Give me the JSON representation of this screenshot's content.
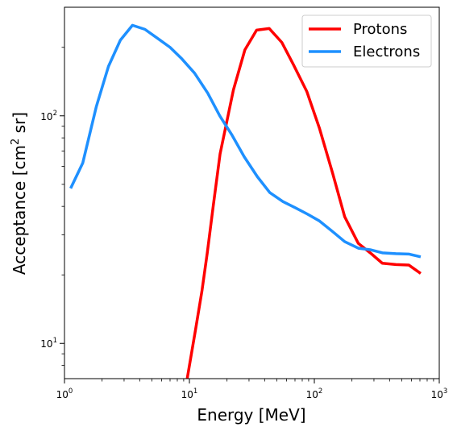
{
  "chart_data": {
    "type": "line",
    "xlabel": "Energy [MeV]",
    "ylabel_main": "Acceptance [cm",
    "ylabel_sup": "2",
    "ylabel_end": " sr]",
    "x_scale": "log",
    "y_scale": "log",
    "xlim": [
      1,
      1000
    ],
    "ylim": [
      7,
      300
    ],
    "x_ticks": [
      {
        "value": 1,
        "base": "10",
        "exp": "0"
      },
      {
        "value": 10,
        "base": "10",
        "exp": "1"
      },
      {
        "value": 100,
        "base": "10",
        "exp": "2"
      },
      {
        "value": 1000,
        "base": "10",
        "exp": "3"
      }
    ],
    "y_ticks": [
      {
        "value": 10,
        "base": "10",
        "exp": "1"
      },
      {
        "value": 100,
        "base": "10",
        "exp": "2"
      }
    ],
    "grid": false,
    "legend_position": "top-right",
    "series": [
      {
        "name": "Protons",
        "color": "#ff0000",
        "x": [
          9.6,
          11.2,
          12.6,
          13.9,
          15.5,
          17.6,
          22.5,
          27.8,
          34.5,
          43.5,
          55,
          68,
          87,
          110,
          140,
          175,
          225,
          280,
          350,
          450,
          570,
          710
        ],
        "y": [
          7,
          11.5,
          17,
          25,
          40,
          68,
          130,
          195,
          238,
          242,
          210,
          168,
          128,
          88,
          56,
          36,
          27.5,
          25,
          22.5,
          22.2,
          22.1,
          20.3
        ]
      },
      {
        "name": "Electrons",
        "color": "#1e90ff",
        "x": [
          1.12,
          1.4,
          1.8,
          2.25,
          2.8,
          3.5,
          4.4,
          5.5,
          7,
          8.7,
          11,
          14,
          17.5,
          22,
          27.5,
          35,
          44,
          56,
          70,
          88,
          110,
          140,
          175,
          225,
          280,
          350,
          450,
          570,
          710
        ],
        "y": [
          48,
          62,
          110,
          165,
          215,
          250,
          240,
          220,
          200,
          178,
          154,
          126,
          100,
          82,
          66,
          54,
          46,
          42,
          39.5,
          37,
          34.5,
          31,
          28,
          26.2,
          25.8,
          25,
          24.8,
          24.7,
          24
        ]
      }
    ]
  }
}
